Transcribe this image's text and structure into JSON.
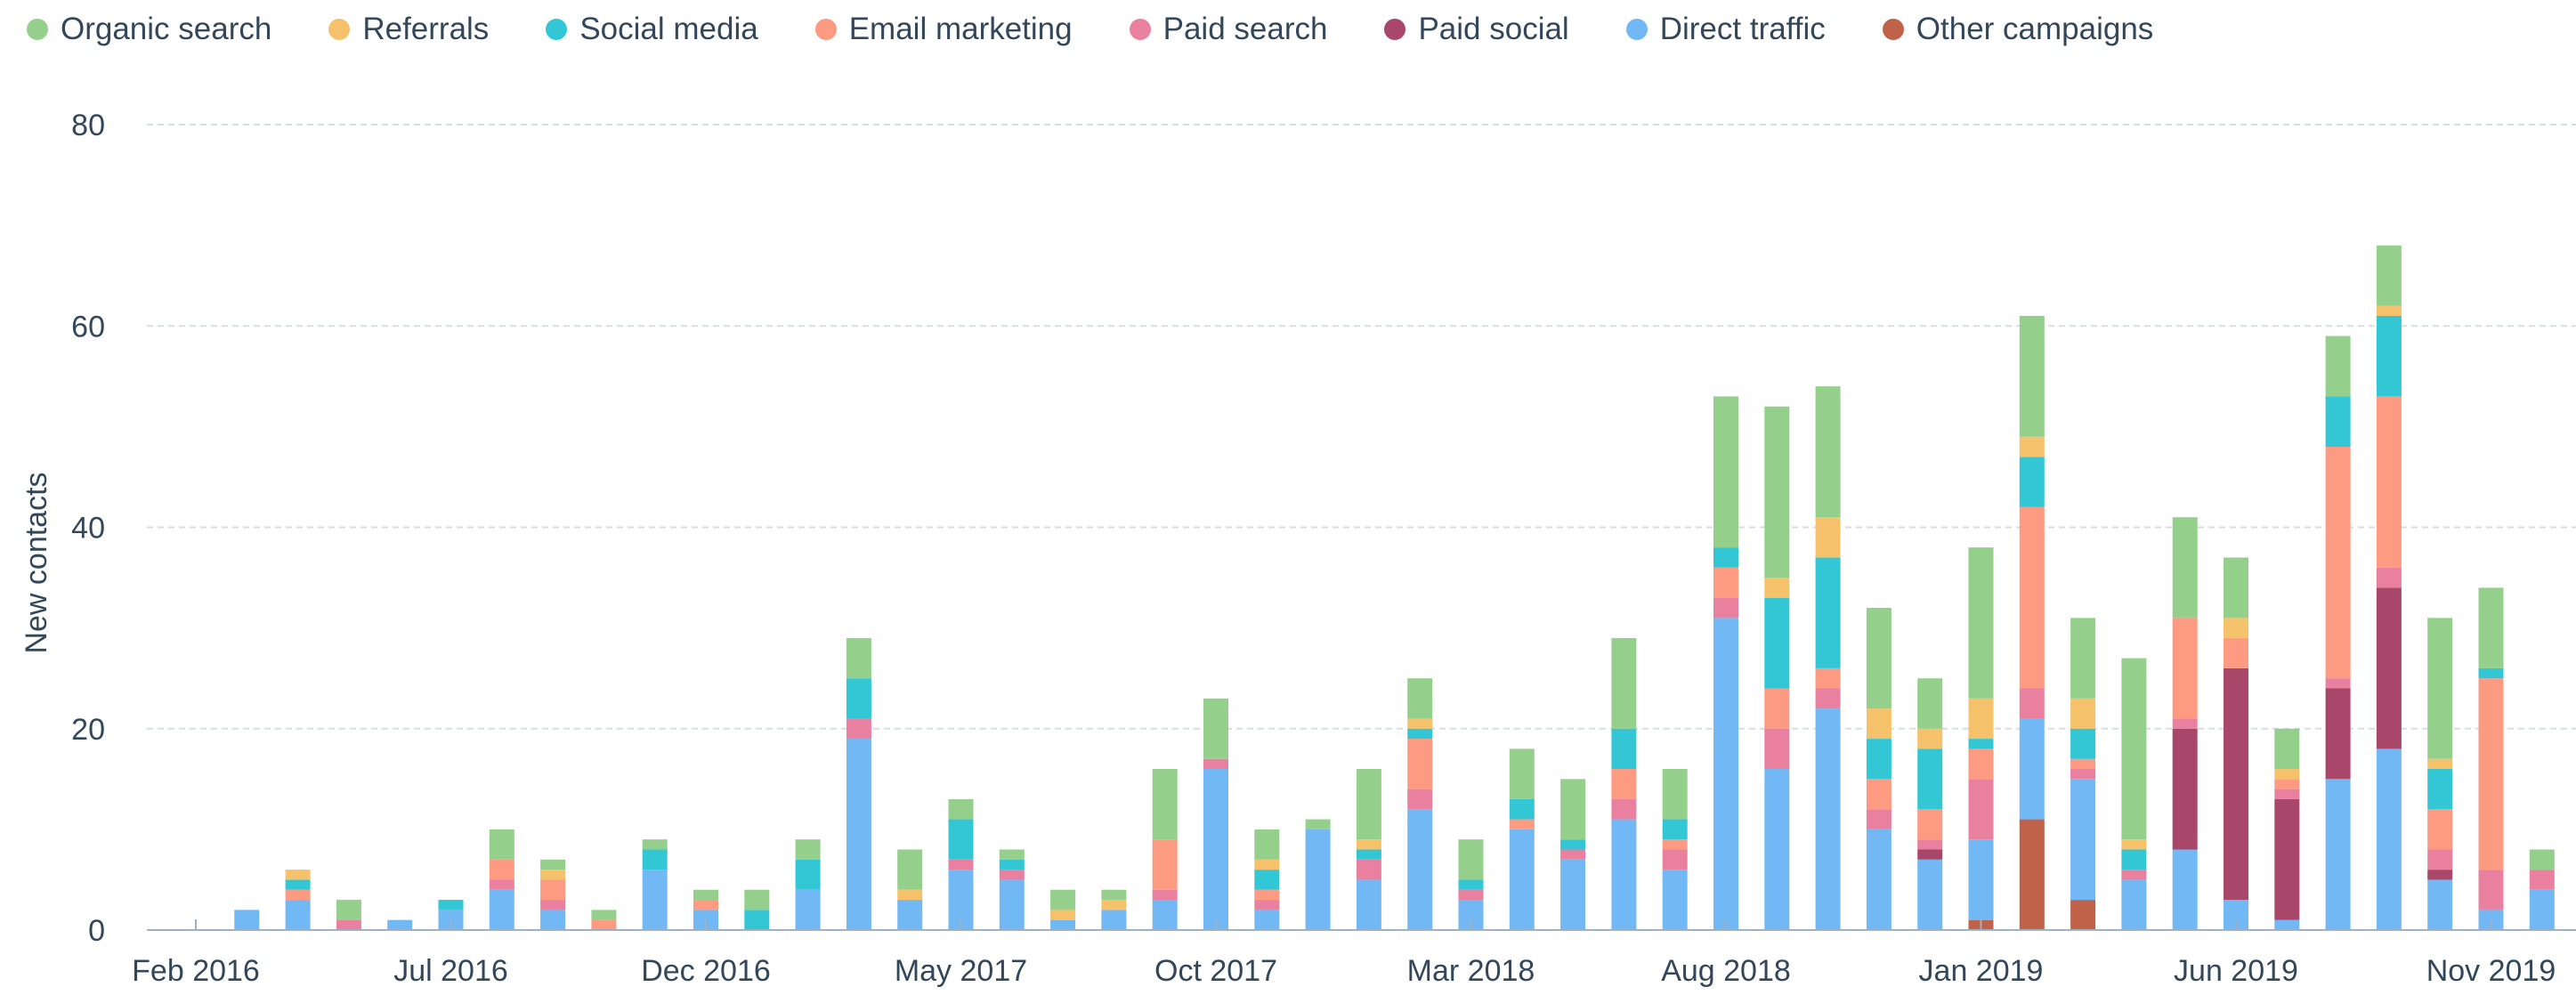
{
  "chart_data": {
    "type": "bar",
    "stacked": true,
    "title": "",
    "xlabel": "",
    "ylabel": "New contacts",
    "ylim": [
      0,
      80
    ],
    "yticks": [
      0,
      20,
      40,
      60,
      80
    ],
    "grid": true,
    "legend_position": "top-left",
    "x_tick_labels": [
      "Feb 2016",
      "Jul 2016",
      "Dec 2016",
      "May 2017",
      "Oct 2017",
      "Mar 2018",
      "Aug 2018",
      "Jan 2019",
      "Jun 2019",
      "Nov 2019"
    ],
    "categories": [
      "Feb 2016",
      "Mar 2016",
      "Apr 2016",
      "May 2016",
      "Jun 2016",
      "Jul 2016",
      "Aug 2016",
      "Sep 2016",
      "Oct 2016",
      "Nov 2016",
      "Dec 2016",
      "Jan 2017",
      "Feb 2017",
      "Mar 2017",
      "Apr 2017",
      "May 2017",
      "Jun 2017",
      "Jul 2017",
      "Aug 2017",
      "Sep 2017",
      "Oct 2017",
      "Nov 2017",
      "Dec 2017",
      "Jan 2018",
      "Feb 2018",
      "Mar 2018",
      "Apr 2018",
      "May 2018",
      "Jun 2018",
      "Jul 2018",
      "Aug 2018",
      "Sep 2018",
      "Oct 2018",
      "Nov 2018",
      "Dec 2018",
      "Jan 2019",
      "Feb 2019",
      "Mar 2019",
      "Apr 2019",
      "May 2019",
      "Jun 2019",
      "Jul 2019",
      "Aug 2019",
      "Sep 2019",
      "Oct 2019",
      "Nov 2019",
      "Dec 2019"
    ],
    "series": [
      {
        "name": "Other campaigns",
        "color": "#c0624a",
        "values": [
          0,
          0,
          0,
          0,
          0,
          0,
          0,
          0,
          0,
          0,
          0,
          0,
          0,
          0,
          0,
          0,
          0,
          0,
          0,
          0,
          0,
          0,
          0,
          0,
          0,
          0,
          0,
          0,
          0,
          0,
          0,
          0,
          0,
          0,
          0,
          1,
          11,
          3,
          0,
          0,
          0,
          0,
          0,
          0,
          0,
          0,
          0
        ]
      },
      {
        "name": "Direct traffic",
        "color": "#72b8f5",
        "values": [
          0,
          2,
          3,
          0,
          1,
          2,
          4,
          2,
          0,
          6,
          2,
          0,
          4,
          19,
          3,
          6,
          5,
          1,
          2,
          3,
          16,
          2,
          10,
          5,
          12,
          3,
          10,
          7,
          11,
          6,
          31,
          16,
          22,
          10,
          7,
          8,
          10,
          12,
          5,
          8,
          3,
          1,
          15,
          18,
          5,
          2,
          4
        ]
      },
      {
        "name": "Paid social",
        "color": "#a8476a",
        "values": [
          0,
          0,
          0,
          0,
          0,
          0,
          0,
          0,
          0,
          0,
          0,
          0,
          0,
          0,
          0,
          0,
          0,
          0,
          0,
          0,
          0,
          0,
          0,
          0,
          0,
          0,
          0,
          0,
          0,
          0,
          0,
          0,
          0,
          0,
          1,
          0,
          0,
          0,
          0,
          12,
          23,
          12,
          9,
          16,
          1,
          0,
          0
        ]
      },
      {
        "name": "Paid search",
        "color": "#ea80a0",
        "values": [
          0,
          0,
          0,
          1,
          0,
          0,
          1,
          1,
          0,
          0,
          0,
          0,
          0,
          2,
          0,
          1,
          1,
          0,
          0,
          1,
          1,
          1,
          0,
          2,
          2,
          1,
          0,
          1,
          2,
          2,
          2,
          4,
          2,
          2,
          1,
          6,
          3,
          1,
          1,
          1,
          0,
          1,
          1,
          2,
          2,
          4,
          2
        ]
      },
      {
        "name": "Email marketing",
        "color": "#fc9b82",
        "values": [
          0,
          0,
          1,
          0,
          0,
          0,
          2,
          2,
          1,
          0,
          1,
          0,
          0,
          0,
          0,
          0,
          0,
          0,
          0,
          5,
          0,
          1,
          0,
          0,
          5,
          0,
          1,
          0,
          3,
          1,
          3,
          4,
          2,
          3,
          3,
          3,
          18,
          1,
          0,
          10,
          3,
          1,
          23,
          17,
          4,
          19,
          0
        ]
      },
      {
        "name": "Social media",
        "color": "#33c7d6",
        "values": [
          0,
          0,
          1,
          0,
          0,
          1,
          0,
          0,
          0,
          2,
          0,
          2,
          3,
          4,
          0,
          4,
          1,
          0,
          0,
          0,
          0,
          2,
          0,
          1,
          1,
          1,
          2,
          1,
          4,
          2,
          2,
          9,
          11,
          4,
          6,
          1,
          5,
          3,
          2,
          0,
          0,
          0,
          5,
          8,
          4,
          1,
          0
        ]
      },
      {
        "name": "Referrals",
        "color": "#f5c26b",
        "values": [
          0,
          0,
          1,
          0,
          0,
          0,
          0,
          1,
          0,
          0,
          0,
          0,
          0,
          0,
          1,
          0,
          0,
          1,
          1,
          0,
          0,
          1,
          0,
          1,
          1,
          0,
          0,
          0,
          0,
          0,
          0,
          2,
          4,
          3,
          2,
          4,
          2,
          3,
          1,
          0,
          2,
          1,
          0,
          1,
          1,
          0,
          0
        ]
      },
      {
        "name": "Organic search",
        "color": "#94cf8b",
        "values": [
          0,
          0,
          0,
          2,
          0,
          0,
          3,
          1,
          1,
          1,
          1,
          2,
          2,
          4,
          4,
          2,
          1,
          2,
          1,
          7,
          6,
          3,
          1,
          7,
          4,
          4,
          5,
          6,
          9,
          5,
          15,
          17,
          13,
          10,
          5,
          15,
          12,
          8,
          18,
          10,
          6,
          4,
          6,
          6,
          14,
          8,
          2
        ]
      }
    ]
  },
  "legend": {
    "items": [
      {
        "label": "Organic search",
        "color": "#94cf8b"
      },
      {
        "label": "Referrals",
        "color": "#f5c26b"
      },
      {
        "label": "Social media",
        "color": "#33c7d6"
      },
      {
        "label": "Email marketing",
        "color": "#fc9b82"
      },
      {
        "label": "Paid search",
        "color": "#ea80a0"
      },
      {
        "label": "Paid social",
        "color": "#a8476a"
      },
      {
        "label": "Direct traffic",
        "color": "#72b8f5"
      },
      {
        "label": "Other campaigns",
        "color": "#c0624a"
      }
    ]
  }
}
